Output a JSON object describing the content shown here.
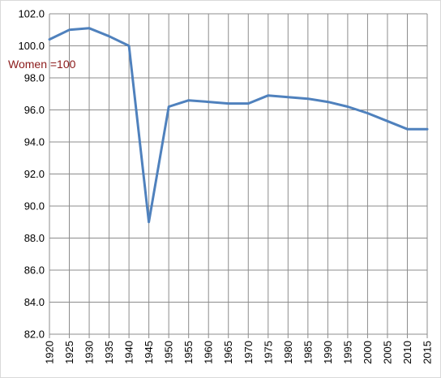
{
  "chart_data": {
    "type": "line",
    "title": "",
    "xlabel": "",
    "ylabel": "",
    "annotation": "Women =100",
    "x": [
      1920,
      1925,
      1930,
      1935,
      1940,
      1945,
      1950,
      1955,
      1960,
      1965,
      1970,
      1975,
      1980,
      1985,
      1990,
      1995,
      2000,
      2005,
      2010,
      2015
    ],
    "series": [
      {
        "values": [
          100.4,
          101.0,
          101.1,
          100.6,
          100.0,
          89.0,
          96.2,
          96.6,
          96.5,
          96.4,
          96.4,
          96.9,
          96.8,
          96.7,
          96.5,
          96.2,
          95.8,
          95.3,
          94.8,
          94.8
        ]
      }
    ],
    "ylim": [
      82.0,
      102.0
    ],
    "yticks": [
      "82.0",
      "84.0",
      "86.0",
      "88.0",
      "90.0",
      "92.0",
      "94.0",
      "96.0",
      "98.0",
      "100.0",
      "102.0"
    ],
    "xticks": [
      "1920",
      "1925",
      "1930",
      "1935",
      "1940",
      "1945",
      "1950",
      "1955",
      "1960",
      "1965",
      "1970",
      "1975",
      "1980",
      "1985",
      "1990",
      "1995",
      "2000",
      "2005",
      "2010",
      "2015"
    ],
    "grid": true,
    "legend": "none",
    "colors": {
      "line": "#4f81bd",
      "grid": "#8c8c8c",
      "annotation": "#8b1a1a"
    }
  }
}
